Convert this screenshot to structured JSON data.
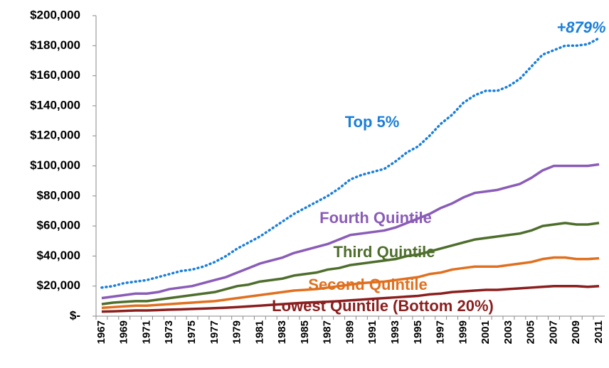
{
  "chart_data": {
    "type": "line",
    "categories": [
      "1967",
      null,
      "1969",
      null,
      "1971",
      null,
      "1973",
      null,
      "1975",
      null,
      "1977",
      null,
      "1979",
      null,
      "1981",
      null,
      "1983",
      null,
      "1985",
      null,
      "1987",
      null,
      "1989",
      null,
      "1991",
      null,
      "1993",
      null,
      "1995",
      null,
      "1997",
      null,
      "1999",
      null,
      "2001",
      null,
      "2003",
      null,
      "2005",
      null,
      "2007",
      null,
      "2009",
      null,
      "2011"
    ],
    "ylim": [
      0,
      200000
    ],
    "yticks": [
      {
        "value": 0,
        "label": "$-"
      },
      {
        "value": 20000,
        "label": "$20,000"
      },
      {
        "value": 40000,
        "label": "$40,000"
      },
      {
        "value": 60000,
        "label": "$60,000"
      },
      {
        "value": 80000,
        "label": "$80,000"
      },
      {
        "value": 100000,
        "label": "$100,000"
      },
      {
        "value": 120000,
        "label": "$120,000"
      },
      {
        "value": 140000,
        "label": "$140,000"
      },
      {
        "value": 160000,
        "label": "$160,000"
      },
      {
        "value": 180000,
        "label": "$180,000"
      },
      {
        "value": 200000,
        "label": "$200,000"
      }
    ],
    "annotation": "+879%",
    "series": [
      {
        "name": "Top 5%",
        "color": "#1a7fd9",
        "dash": "dotted",
        "values": [
          19000,
          20000,
          22000,
          23000,
          24000,
          26000,
          28000,
          30000,
          31000,
          33000,
          36000,
          40000,
          45000,
          49000,
          53000,
          58000,
          63000,
          68000,
          72000,
          76000,
          80000,
          85000,
          91000,
          94000,
          96000,
          98000,
          103000,
          109000,
          113000,
          120000,
          128000,
          134000,
          142000,
          147000,
          150000,
          150000,
          153000,
          158000,
          166000,
          174000,
          177000,
          180000,
          180000,
          181000,
          185000
        ]
      },
      {
        "name": "Fourth Quintile",
        "color": "#8a5cb8",
        "values": [
          12000,
          13000,
          14000,
          15000,
          15000,
          16000,
          18000,
          19000,
          20000,
          22000,
          24000,
          26000,
          29000,
          32000,
          35000,
          37000,
          39000,
          42000,
          44000,
          46000,
          48000,
          51000,
          54000,
          55000,
          56000,
          57000,
          59000,
          62000,
          65000,
          68000,
          72000,
          75000,
          79000,
          82000,
          83000,
          84000,
          86000,
          88000,
          92000,
          97000,
          100000,
          100000,
          100000,
          100000,
          101000
        ]
      },
      {
        "name": "Third Quintile",
        "color": "#4e6e2c",
        "values": [
          8000,
          9000,
          9500,
          10000,
          10000,
          11000,
          12000,
          13000,
          14000,
          15000,
          16000,
          18000,
          20000,
          21000,
          23000,
          24000,
          25000,
          27000,
          28000,
          29000,
          31000,
          32000,
          34000,
          35000,
          36000,
          37000,
          38000,
          40000,
          41000,
          43000,
          45000,
          47000,
          49000,
          51000,
          52000,
          53000,
          54000,
          55000,
          57000,
          60000,
          61000,
          62000,
          61000,
          61000,
          62000
        ]
      },
      {
        "name": "Second Quintile",
        "color": "#e0701f",
        "values": [
          5500,
          6000,
          6500,
          7000,
          7000,
          7500,
          8000,
          8500,
          9000,
          9500,
          10000,
          11000,
          12000,
          13000,
          14000,
          15000,
          16000,
          17000,
          17500,
          18000,
          19000,
          20000,
          21000,
          22000,
          22500,
          23000,
          24000,
          25000,
          26000,
          28000,
          29000,
          31000,
          32000,
          33000,
          33000,
          33000,
          34000,
          35000,
          36000,
          38000,
          39000,
          39000,
          38000,
          38000,
          38500
        ]
      },
      {
        "name": "Lowest Quintile (Bottom 20%)",
        "color": "#8b1e1e",
        "values": [
          3000,
          3200,
          3500,
          3800,
          3800,
          4000,
          4300,
          4500,
          4800,
          5000,
          5300,
          5600,
          6000,
          6500,
          7000,
          7500,
          8000,
          8500,
          9000,
          9300,
          9600,
          10000,
          10500,
          11000,
          11500,
          12000,
          12500,
          13000,
          13500,
          14500,
          15000,
          16000,
          16500,
          17000,
          17500,
          17500,
          18000,
          18500,
          19000,
          19500,
          20000,
          20000,
          20000,
          19500,
          20000
        ]
      }
    ]
  }
}
